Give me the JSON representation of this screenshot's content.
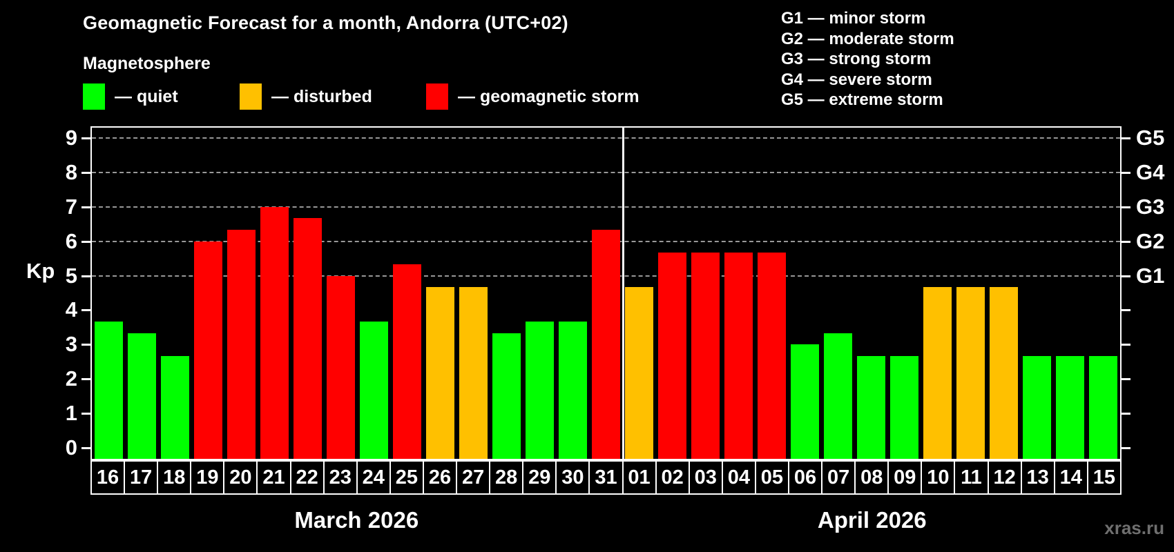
{
  "header": {
    "title": "Geomagnetic Forecast for a month, Andorra (UTC+02)",
    "subtitle": "Magnetosphere",
    "status_legend": [
      {
        "status": "quiet",
        "swatch_color": "#00ff00",
        "label": "— quiet"
      },
      {
        "status": "disturbed",
        "swatch_color": "#ffc000",
        "label": "— disturbed"
      },
      {
        "status": "storm",
        "swatch_color": "#ff0000",
        "label": "— geomagnetic storm"
      }
    ],
    "g_scale_legend": [
      "G1 — minor storm",
      "G2 — moderate storm",
      "G3 — strong storm",
      "G4 — severe storm",
      "G5 — extreme storm"
    ]
  },
  "chart_data": {
    "type": "bar",
    "title": "Geomagnetic Forecast for a month, Andorra (UTC+02)",
    "ylabel": "Kp",
    "xlabel": "",
    "ylim": [
      0,
      9.4
    ],
    "y_ticks": [
      0,
      1,
      2,
      3,
      4,
      5,
      6,
      7,
      8,
      9
    ],
    "gridlines_at_kp": [
      5,
      6,
      7,
      8,
      9
    ],
    "grid": "dashed-horizontal",
    "legend_position": "top-left",
    "right_axis": [
      {
        "kp": 5,
        "label": "G1"
      },
      {
        "kp": 6,
        "label": "G2"
      },
      {
        "kp": 7,
        "label": "G3"
      },
      {
        "kp": 8,
        "label": "G4"
      },
      {
        "kp": 9,
        "label": "G5"
      }
    ],
    "months": [
      {
        "label": "March 2026",
        "days": [
          {
            "date": "16",
            "kp": 3.67,
            "status": "quiet"
          },
          {
            "date": "17",
            "kp": 3.33,
            "status": "quiet"
          },
          {
            "date": "18",
            "kp": 2.67,
            "status": "quiet"
          },
          {
            "date": "19",
            "kp": 6.0,
            "status": "storm"
          },
          {
            "date": "20",
            "kp": 6.33,
            "status": "storm"
          },
          {
            "date": "21",
            "kp": 7.0,
            "status": "storm"
          },
          {
            "date": "22",
            "kp": 6.67,
            "status": "storm"
          },
          {
            "date": "23",
            "kp": 5.0,
            "status": "storm"
          },
          {
            "date": "24",
            "kp": 3.67,
            "status": "quiet"
          },
          {
            "date": "25",
            "kp": 5.33,
            "status": "storm"
          },
          {
            "date": "26",
            "kp": 4.67,
            "status": "disturbed"
          },
          {
            "date": "27",
            "kp": 4.67,
            "status": "disturbed"
          },
          {
            "date": "28",
            "kp": 3.33,
            "status": "quiet"
          },
          {
            "date": "29",
            "kp": 3.67,
            "status": "quiet"
          },
          {
            "date": "30",
            "kp": 3.67,
            "status": "quiet"
          },
          {
            "date": "31",
            "kp": 6.33,
            "status": "storm"
          }
        ]
      },
      {
        "label": "April 2026",
        "days": [
          {
            "date": "01",
            "kp": 4.67,
            "status": "disturbed"
          },
          {
            "date": "02",
            "kp": 5.67,
            "status": "storm"
          },
          {
            "date": "03",
            "kp": 5.67,
            "status": "storm"
          },
          {
            "date": "04",
            "kp": 5.67,
            "status": "storm"
          },
          {
            "date": "05",
            "kp": 5.67,
            "status": "storm"
          },
          {
            "date": "06",
            "kp": 3.0,
            "status": "quiet"
          },
          {
            "date": "07",
            "kp": 3.33,
            "status": "quiet"
          },
          {
            "date": "08",
            "kp": 2.67,
            "status": "quiet"
          },
          {
            "date": "09",
            "kp": 2.67,
            "status": "quiet"
          },
          {
            "date": "10",
            "kp": 4.67,
            "status": "disturbed"
          },
          {
            "date": "11",
            "kp": 4.67,
            "status": "disturbed"
          },
          {
            "date": "12",
            "kp": 4.67,
            "status": "disturbed"
          },
          {
            "date": "13",
            "kp": 2.67,
            "status": "quiet"
          },
          {
            "date": "14",
            "kp": 2.67,
            "status": "quiet"
          },
          {
            "date": "15",
            "kp": 2.67,
            "status": "quiet"
          }
        ]
      }
    ]
  },
  "colors": {
    "quiet": "#00ff00",
    "disturbed": "#ffc000",
    "storm": "#ff0000",
    "axis": "#ffffff",
    "gridline": "#999999",
    "background": "#000000",
    "watermark": "#6f6f6f"
  },
  "watermark": "xras.ru"
}
